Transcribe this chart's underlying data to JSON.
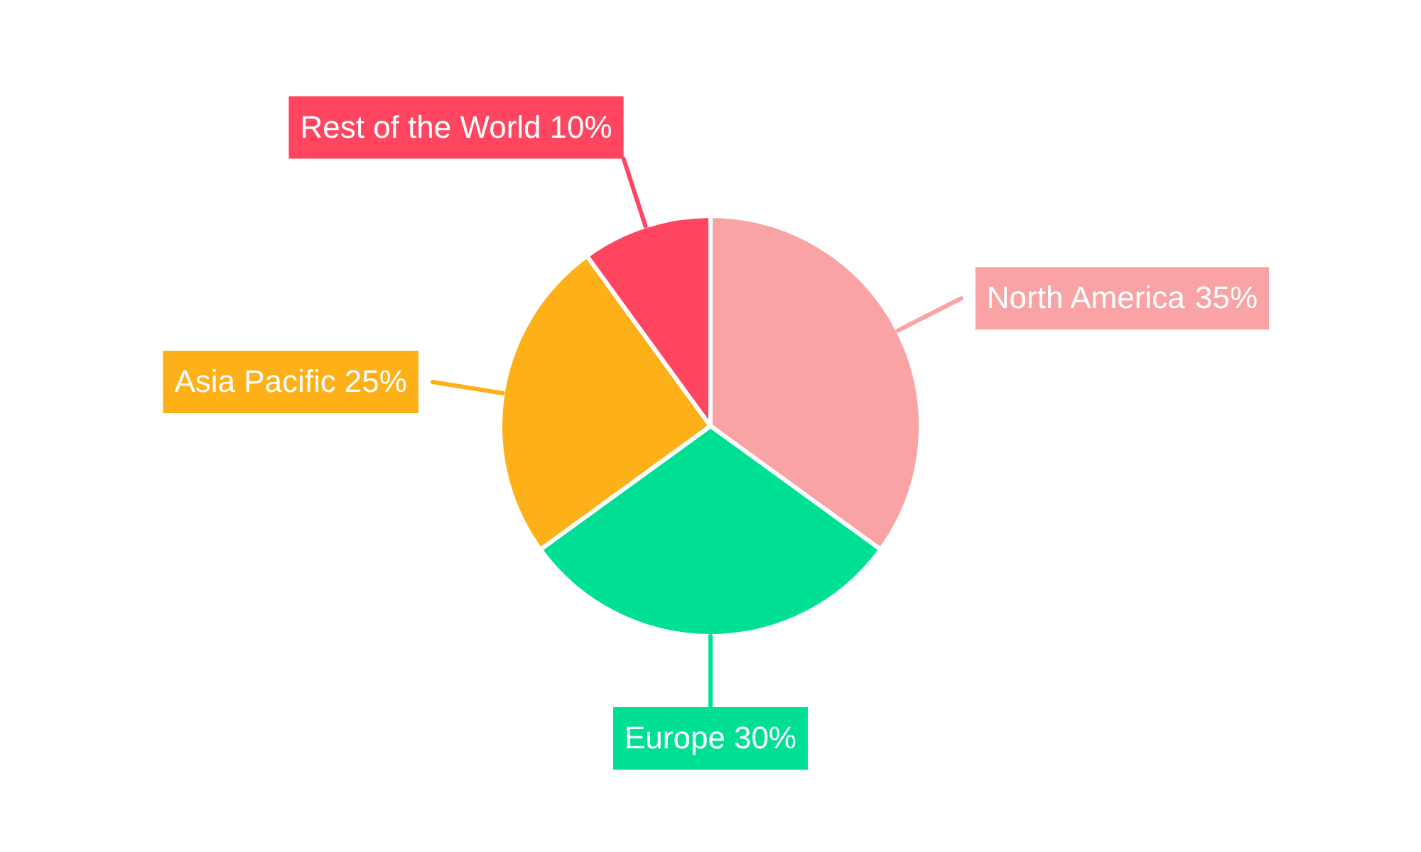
{
  "chart_data": {
    "type": "pie",
    "categories": [
      "North America",
      "Europe",
      "Asia Pacific",
      "Rest of the World"
    ],
    "values": [
      35,
      30,
      25,
      10
    ],
    "colors": [
      "#f9a3a4",
      "#00e094",
      "#feb019",
      "#ff4560"
    ],
    "value_labels": [
      "35%",
      "30%",
      "25%",
      "10%"
    ],
    "legend": false
  }
}
